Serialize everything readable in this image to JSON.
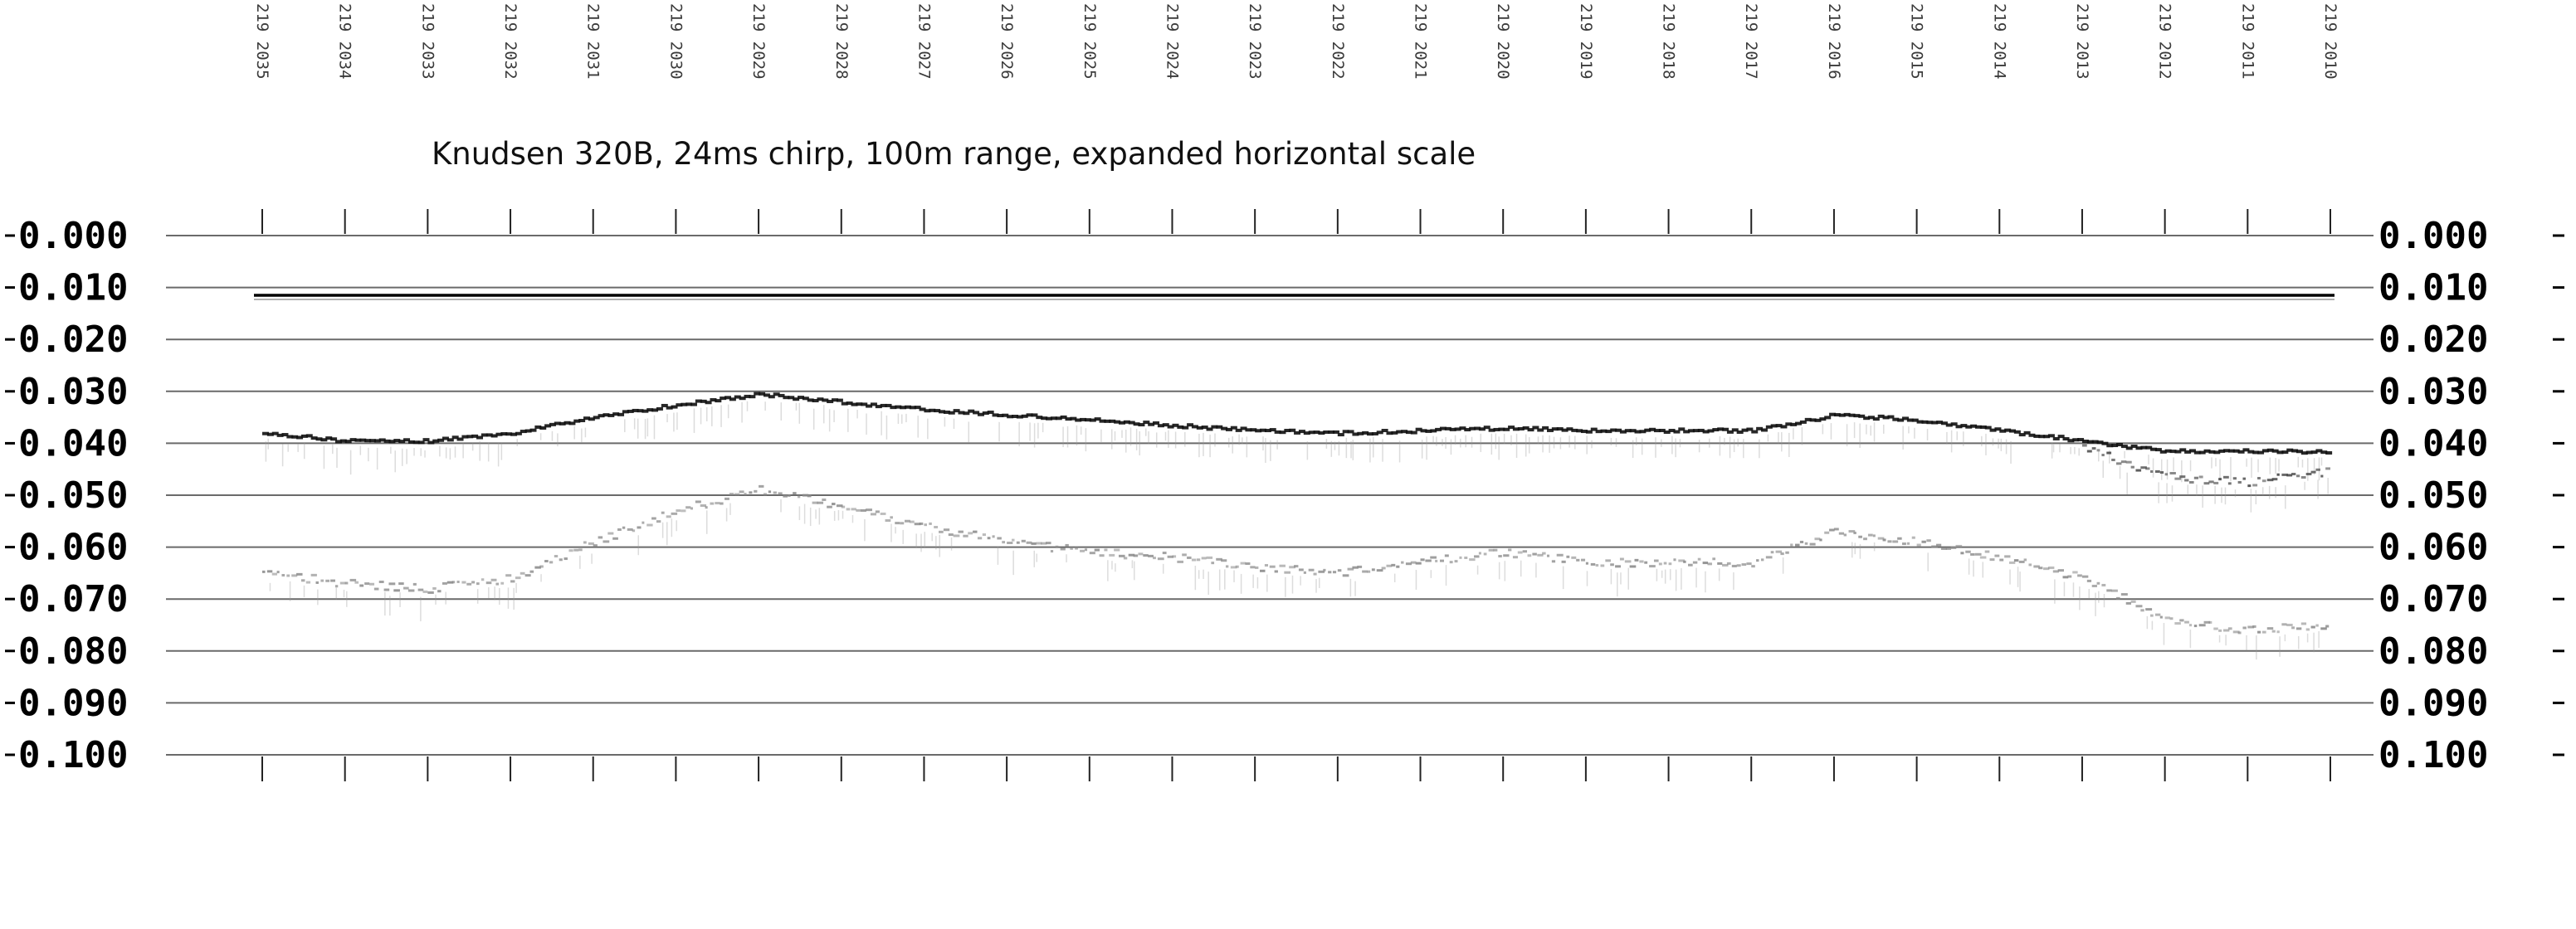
{
  "chart_data": {
    "type": "scatter",
    "title": "Knudsen 320B, 24ms chirp, 100m range, expanded horizontal scale",
    "xlabel": "",
    "ylabel": "",
    "x_tick_labels": [
      "219 2035",
      "219 2034",
      "219 2033",
      "219 2032",
      "219 2031",
      "219 2030",
      "219 2029",
      "219 2028",
      "219 2027",
      "219 2026",
      "219 2025",
      "219 2024",
      "219 2023",
      "219 2022",
      "219 2021",
      "219 2020",
      "219 2019",
      "219 2018",
      "219 2017",
      "219 2016",
      "219 2015",
      "219 2014",
      "219 2013",
      "219 2012",
      "219 2011",
      "219 2010"
    ],
    "y_tick_labels": [
      "0.000",
      "0.010",
      "0.020",
      "0.030",
      "0.040",
      "0.050",
      "0.060",
      "0.070",
      "0.080",
      "0.090",
      "0.100"
    ],
    "ylim": [
      0.0,
      0.1
    ],
    "y_inverted": true,
    "grid": true,
    "reference_line": {
      "y": 0.0115
    },
    "series": [
      {
        "role": "primary-echo",
        "color": "#111111",
        "x": [
          "219 2035",
          "219 2034",
          "219 2033",
          "219 2032",
          "219 2031",
          "219 2030",
          "219 2029",
          "219 2028",
          "219 2027",
          "219 2026",
          "219 2025",
          "219 2024",
          "219 2023",
          "219 2022",
          "219 2021",
          "219 2020",
          "219 2019",
          "219 2018",
          "219 2017",
          "219 2016",
          "219 2015",
          "219 2014",
          "219 2013",
          "219 2012",
          "219 2011",
          "219 2010"
        ],
        "values": [
          0.038,
          0.0395,
          0.0395,
          0.038,
          0.035,
          0.0325,
          0.0305,
          0.032,
          0.0335,
          0.0345,
          0.0355,
          0.0365,
          0.0375,
          0.038,
          0.0375,
          0.037,
          0.0375,
          0.0375,
          0.0375,
          0.0345,
          0.0355,
          0.0375,
          0.0395,
          0.0415,
          0.0415,
          0.0415
        ]
      },
      {
        "role": "lower-band",
        "color": "#111111",
        "x": [
          "219 2013",
          "219 2012",
          "219 2011",
          "219 2010"
        ],
        "values": [
          0.041,
          0.0465,
          0.0475,
          0.0455
        ]
      },
      {
        "role": "second-return",
        "color": "#777777",
        "x": [
          "219 2035",
          "219 2034",
          "219 2033",
          "219 2032",
          "219 2031",
          "219 2030",
          "219 2029",
          "219 2028",
          "219 2027",
          "219 2026",
          "219 2025",
          "219 2024",
          "219 2023",
          "219 2022",
          "219 2021",
          "219 2020",
          "219 2019",
          "219 2018",
          "219 2017",
          "219 2016",
          "219 2015",
          "219 2014",
          "219 2013",
          "219 2012",
          "219 2011",
          "219 2010"
        ],
        "values": [
          0.065,
          0.067,
          0.068,
          0.066,
          0.059,
          0.053,
          0.049,
          0.052,
          0.056,
          0.059,
          0.061,
          0.062,
          0.064,
          0.065,
          0.063,
          0.061,
          0.063,
          0.063,
          0.063,
          0.057,
          0.059,
          0.062,
          0.066,
          0.074,
          0.076,
          0.075
        ]
      }
    ]
  }
}
